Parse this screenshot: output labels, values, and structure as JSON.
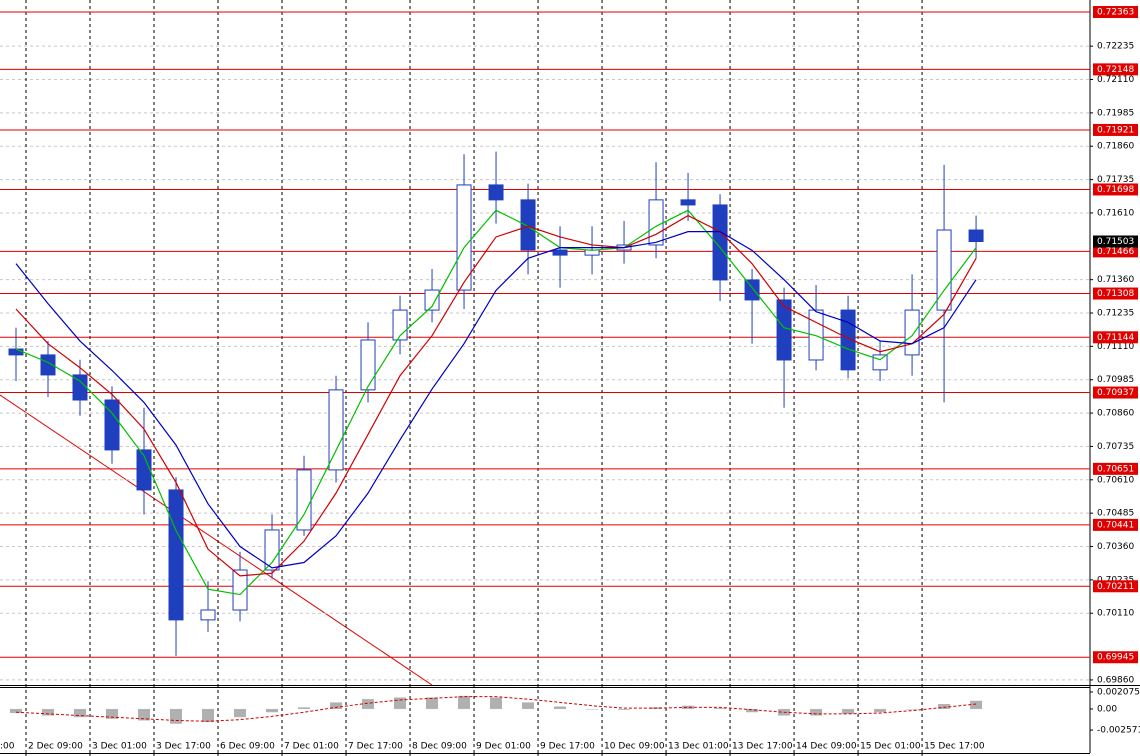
{
  "chart_data": [
    {
      "type": "candlestick",
      "open": [
        0.711,
        0.71078,
        0.71003,
        0.70909,
        0.70722,
        0.70572,
        0.70085,
        0.70122,
        0.70272,
        0.70422,
        0.70647,
        0.70947,
        0.71134,
        0.71246,
        0.71321,
        0.71715,
        0.71659,
        0.71471,
        0.71452,
        0.71471,
        0.7149,
        0.71659,
        0.7164,
        0.71359,
        0.71284,
        0.71059,
        0.71246,
        0.71022,
        0.71078,
        0.71246,
        0.71546
      ],
      "high": [
        0.7118,
        0.7113,
        0.7106,
        0.7096,
        0.7088,
        0.7062,
        0.7023,
        0.7034,
        0.7048,
        0.707,
        0.71,
        0.712,
        0.713,
        0.714,
        0.7183,
        0.7184,
        0.7172,
        0.7156,
        0.7156,
        0.7158,
        0.718,
        0.7176,
        0.7168,
        0.714,
        0.7133,
        0.7134,
        0.713,
        0.7113,
        0.7138,
        0.7179,
        0.716
      ],
      "low": [
        0.7098,
        0.7092,
        0.7085,
        0.7067,
        0.7048,
        0.6995,
        0.7004,
        0.7008,
        0.7024,
        0.704,
        0.706,
        0.709,
        0.7108,
        0.712,
        0.7125,
        0.7157,
        0.7138,
        0.7133,
        0.7138,
        0.7142,
        0.7144,
        0.7158,
        0.7128,
        0.7112,
        0.7088,
        0.7102,
        0.7099,
        0.7098,
        0.71,
        0.709,
        0.7144
      ],
      "close": [
        0.71078,
        0.71003,
        0.70909,
        0.70722,
        0.70572,
        0.70085,
        0.70122,
        0.70272,
        0.70422,
        0.70647,
        0.70947,
        0.71134,
        0.71246,
        0.71321,
        0.71715,
        0.71659,
        0.71471,
        0.71452,
        0.71471,
        0.7149,
        0.71659,
        0.7164,
        0.71359,
        0.71284,
        0.71059,
        0.71246,
        0.71022,
        0.71078,
        0.71246,
        0.71546,
        0.71503
      ],
      "candle_color": "#1f3fbf",
      "series": [
        {
          "color": "#00c000",
          "values": [
            0.711,
            0.7105,
            0.7098,
            0.7086,
            0.707,
            0.7042,
            0.702,
            0.7018,
            0.703,
            0.7048,
            0.7072,
            0.7096,
            0.7115,
            0.7126,
            0.7148,
            0.7162,
            0.7156,
            0.7148,
            0.7147,
            0.7148,
            0.7156,
            0.7162,
            0.7148,
            0.7133,
            0.7118,
            0.7115,
            0.711,
            0.7106,
            0.7115,
            0.7132,
            0.7148
          ]
        },
        {
          "color": "#d00000",
          "values": [
            0.7125,
            0.7112,
            0.7103,
            0.7093,
            0.708,
            0.706,
            0.7035,
            0.7025,
            0.7026,
            0.7038,
            0.7056,
            0.7078,
            0.71,
            0.7115,
            0.7135,
            0.7152,
            0.7156,
            0.7152,
            0.7149,
            0.7148,
            0.7153,
            0.716,
            0.7154,
            0.7142,
            0.7126,
            0.712,
            0.7114,
            0.7109,
            0.7112,
            0.7123,
            0.7144
          ]
        },
        {
          "color": "#0000c0",
          "values": [
            0.7142,
            0.7127,
            0.7113,
            0.7102,
            0.709,
            0.7074,
            0.7052,
            0.7036,
            0.7028,
            0.703,
            0.704,
            0.7056,
            0.7076,
            0.7095,
            0.7112,
            0.7132,
            0.7144,
            0.7148,
            0.7148,
            0.7148,
            0.715,
            0.7154,
            0.7154,
            0.7147,
            0.7136,
            0.7124,
            0.712,
            0.7113,
            0.7112,
            0.7118,
            0.7136
          ]
        }
      ],
      "levels": [
        0.72363,
        0.72148,
        0.71921,
        0.71698,
        0.71466,
        0.71308,
        0.71144,
        0.70937,
        0.70651,
        0.70441,
        0.70211,
        0.69945
      ],
      "level_color": "#e00000",
      "current_price": 0.71503,
      "xlim": [
        -0.5,
        33.56
      ],
      "ylim": [
        0.69841,
        0.72408
      ],
      "yticks": [
        {
          "value": 0.72235,
          "label": "0.72235"
        },
        {
          "value": 0.7211,
          "label": "0.72110"
        },
        {
          "value": 0.71985,
          "label": "0.71985"
        },
        {
          "value": 0.7186,
          "label": "0.71860"
        },
        {
          "value": 0.71735,
          "label": "0.71735"
        },
        {
          "value": 0.7161,
          "label": "0.71610"
        },
        {
          "value": 0.7136,
          "label": "0.71360"
        },
        {
          "value": 0.71235,
          "label": "0.71235"
        },
        {
          "value": 0.7111,
          "label": "0.71110"
        },
        {
          "value": 0.70985,
          "label": "0.70985"
        },
        {
          "value": 0.7086,
          "label": "0.70860"
        },
        {
          "value": 0.70735,
          "label": "0.70735"
        },
        {
          "value": 0.7061,
          "label": "0.70610"
        },
        {
          "value": 0.70485,
          "label": "0.70485"
        },
        {
          "value": 0.7036,
          "label": "0.70360"
        },
        {
          "value": 0.70235,
          "label": "0.70235"
        },
        {
          "value": 0.7011,
          "label": "0.70110"
        },
        {
          "value": 0.6986,
          "label": "0.69860"
        }
      ],
      "xticks": [
        {
          "value": -0.5,
          "label": ":00"
        },
        {
          "value": 0.375,
          "label": "2 Dec 09:00"
        },
        {
          "value": 2.375,
          "label": "3 Dec 01:00"
        },
        {
          "value": 4.375,
          "label": "3 Dec 17:00"
        },
        {
          "value": 6.375,
          "label": "6 Dec 09:00"
        },
        {
          "value": 8.375,
          "label": "7 Dec 01:00"
        },
        {
          "value": 10.375,
          "label": "7 Dec 17:00"
        },
        {
          "value": 12.375,
          "label": "8 Dec 09:00"
        },
        {
          "value": 14.375,
          "label": "9 Dec 01:00"
        },
        {
          "value": 16.375,
          "label": "9 Dec 17:00"
        },
        {
          "value": 18.375,
          "label": "10 Dec 09:00"
        },
        {
          "value": 20.375,
          "label": "13 Dec 01:00"
        },
        {
          "value": 22.375,
          "label": "13 Dec 17:00"
        },
        {
          "value": 24.375,
          "label": "14 Dec 09:00"
        },
        {
          "value": 26.375,
          "label": "15 Dec 01:00"
        },
        {
          "value": 28.375,
          "label": "15 Dec 17:00"
        }
      ],
      "grid": true
    },
    {
      "type": "bar",
      "values": [
        -0.0005,
        -0.0008,
        -0.001,
        -0.0012,
        -0.0014,
        -0.0018,
        -0.0016,
        -0.001,
        -0.0004,
        0.0002,
        0.0008,
        0.0012,
        0.0014,
        0.0014,
        0.0016,
        0.0014,
        0.0008,
        0.0003,
        0.0,
        -0.0001,
        0.0002,
        0.0004,
        0.0001,
        -0.0004,
        -0.0008,
        -0.0008,
        -0.0006,
        -0.0004,
        0.0,
        0.0006,
        0.001
      ],
      "color": "#b0b0b0",
      "signal": [
        -0.0004,
        -0.0006,
        -0.0008,
        -0.001,
        -0.0012,
        -0.0014,
        -0.0015,
        -0.0013,
        -0.0009,
        -0.0004,
        0.0002,
        0.0007,
        0.0011,
        0.0013,
        0.0015,
        0.0015,
        0.0012,
        0.0008,
        0.0004,
        0.0001,
        0.0001,
        0.0002,
        0.0002,
        -0.0001,
        -0.0004,
        -0.0006,
        -0.0006,
        -0.0005,
        -0.0002,
        0.0002,
        0.0006
      ],
      "signal_color": "#d00000",
      "ylim": [
        -0.00537,
        0.00268
      ],
      "yticks": [
        0.002075,
        {
          "value": 0,
          "label": "0.00"
        },
        -0.002571
      ]
    }
  ]
}
